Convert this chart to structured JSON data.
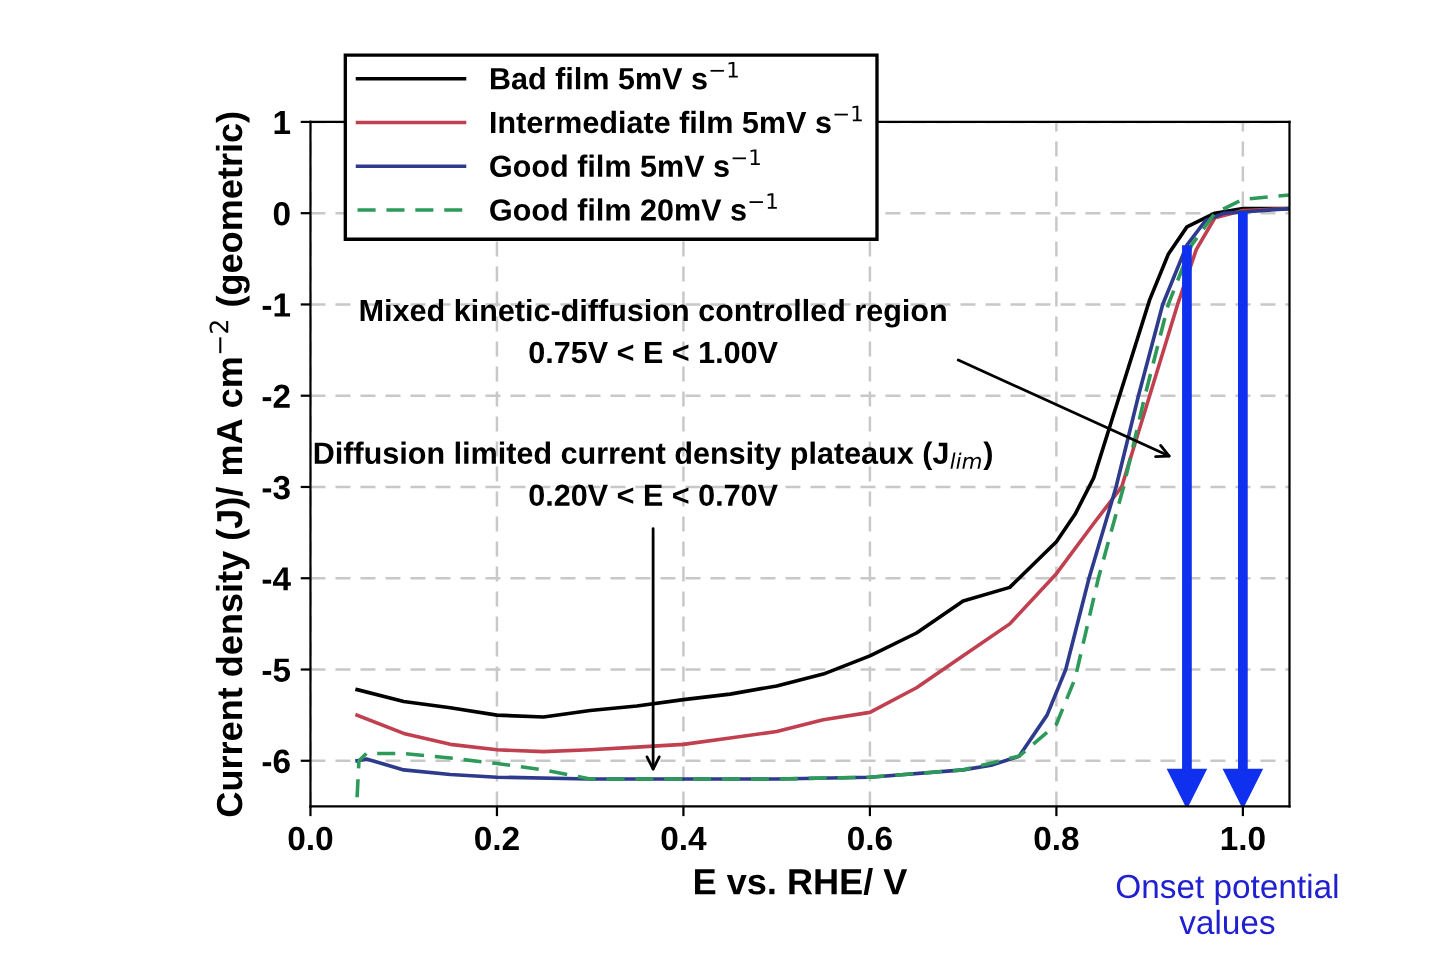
{
  "chart_data": {
    "type": "line",
    "xlabel": "E vs. RHE/ V",
    "ylabel": "Current density (J)/ mA cm$^{−2}$ (geometric)",
    "xlim": [
      0,
      1.05
    ],
    "ylim": [
      -6.5,
      1
    ],
    "xticks": [
      {
        "value": 0,
        "label": "0.0"
      },
      {
        "value": 0.2,
        "label": "0.2"
      },
      {
        "value": 0.4,
        "label": "0.4"
      },
      {
        "value": 0.6,
        "label": "0.6"
      },
      {
        "value": 0.8,
        "label": "0.8"
      },
      {
        "value": 1.0,
        "label": "1.0"
      }
    ],
    "yticks": [
      1,
      0,
      -1,
      -2,
      -3,
      -4,
      -5,
      -6
    ],
    "grid": true,
    "legend": "top left",
    "marker": "none",
    "series": [
      {
        "name": "Bad film 5mV s$^{−1}$",
        "color": "#000000",
        "line_style": "solid",
        "x": [
          0.05,
          0.1,
          0.15,
          0.2,
          0.25,
          0.3,
          0.35,
          0.4,
          0.45,
          0.5,
          0.55,
          0.6,
          0.65,
          0.7,
          0.75,
          0.8,
          0.82,
          0.84,
          0.86,
          0.88,
          0.9,
          0.92,
          0.94,
          0.97,
          1.0,
          1.05
        ],
        "values": [
          -5.22,
          -5.35,
          -5.42,
          -5.5,
          -5.52,
          -5.45,
          -5.4,
          -5.33,
          -5.27,
          -5.18,
          -5.05,
          -4.85,
          -4.6,
          -4.25,
          -4.1,
          -3.6,
          -3.3,
          -2.9,
          -2.25,
          -1.6,
          -0.95,
          -0.45,
          -0.15,
          0,
          0.05,
          0.05
        ]
      },
      {
        "name": "Intermediate film 5mV s$^{−1}$",
        "color": "#c0404f",
        "line_style": "solid",
        "x": [
          0.05,
          0.1,
          0.15,
          0.2,
          0.25,
          0.3,
          0.35,
          0.4,
          0.45,
          0.5,
          0.55,
          0.6,
          0.65,
          0.7,
          0.75,
          0.8,
          0.84,
          0.87,
          0.9,
          0.93,
          0.95,
          0.97,
          1.0,
          1.05
        ],
        "values": [
          -5.5,
          -5.7,
          -5.82,
          -5.88,
          -5.9,
          -5.88,
          -5.85,
          -5.82,
          -5.75,
          -5.68,
          -5.55,
          -5.47,
          -5.2,
          -4.85,
          -4.5,
          -3.95,
          -3.4,
          -3.0,
          -2.0,
          -1.0,
          -0.4,
          -0.05,
          0.03,
          0.05
        ]
      },
      {
        "name": "Good film 5mV s$^{−1}$",
        "color": "#2e3a8c",
        "line_style": "solid",
        "x": [
          0.05,
          0.06,
          0.1,
          0.15,
          0.2,
          0.3,
          0.4,
          0.5,
          0.6,
          0.7,
          0.73,
          0.76,
          0.79,
          0.81,
          0.835,
          0.864,
          0.888,
          0.914,
          0.94,
          0.96,
          0.98,
          1.05
        ],
        "values": [
          -6.0,
          -5.98,
          -6.1,
          -6.15,
          -6.18,
          -6.2,
          -6.2,
          -6.2,
          -6.18,
          -6.1,
          -6.05,
          -5.95,
          -5.5,
          -5.0,
          -4.0,
          -3.0,
          -2.0,
          -1.0,
          -0.35,
          -0.08,
          0,
          0.05
        ]
      },
      {
        "name": "Good film 20mV s$^{−1}$",
        "color": "#2e9a5a",
        "line_style": "dashed",
        "x": [
          0.05,
          0.052,
          0.06,
          0.1,
          0.15,
          0.2,
          0.25,
          0.3,
          0.4,
          0.5,
          0.6,
          0.7,
          0.76,
          0.8,
          0.82,
          0.845,
          0.872,
          0.895,
          0.92,
          0.945,
          0.97,
          1.0,
          1.05
        ],
        "values": [
          -6.4,
          -6.0,
          -5.92,
          -5.92,
          -5.97,
          -6.03,
          -6.1,
          -6.2,
          -6.2,
          -6.2,
          -6.18,
          -6.1,
          -5.95,
          -5.6,
          -5.1,
          -4.0,
          -3.0,
          -2.0,
          -1.0,
          -0.35,
          0,
          0.15,
          0.2
        ]
      }
    ],
    "annotations": [
      "Mixed kinetic-diffusion controlled region\n0.75V < E < 1.00V",
      "Diffusion limited current density plateaux (J$_{lim}$)\n0.20V < E < 0.70V",
      "Onset potential\nvalues"
    ],
    "ref_lines": [
      {
        "axis": "x",
        "value": 0.94,
        "color": "#1030f0"
      },
      {
        "axis": "x",
        "value": 1.0,
        "color": "#1030f0"
      }
    ]
  }
}
